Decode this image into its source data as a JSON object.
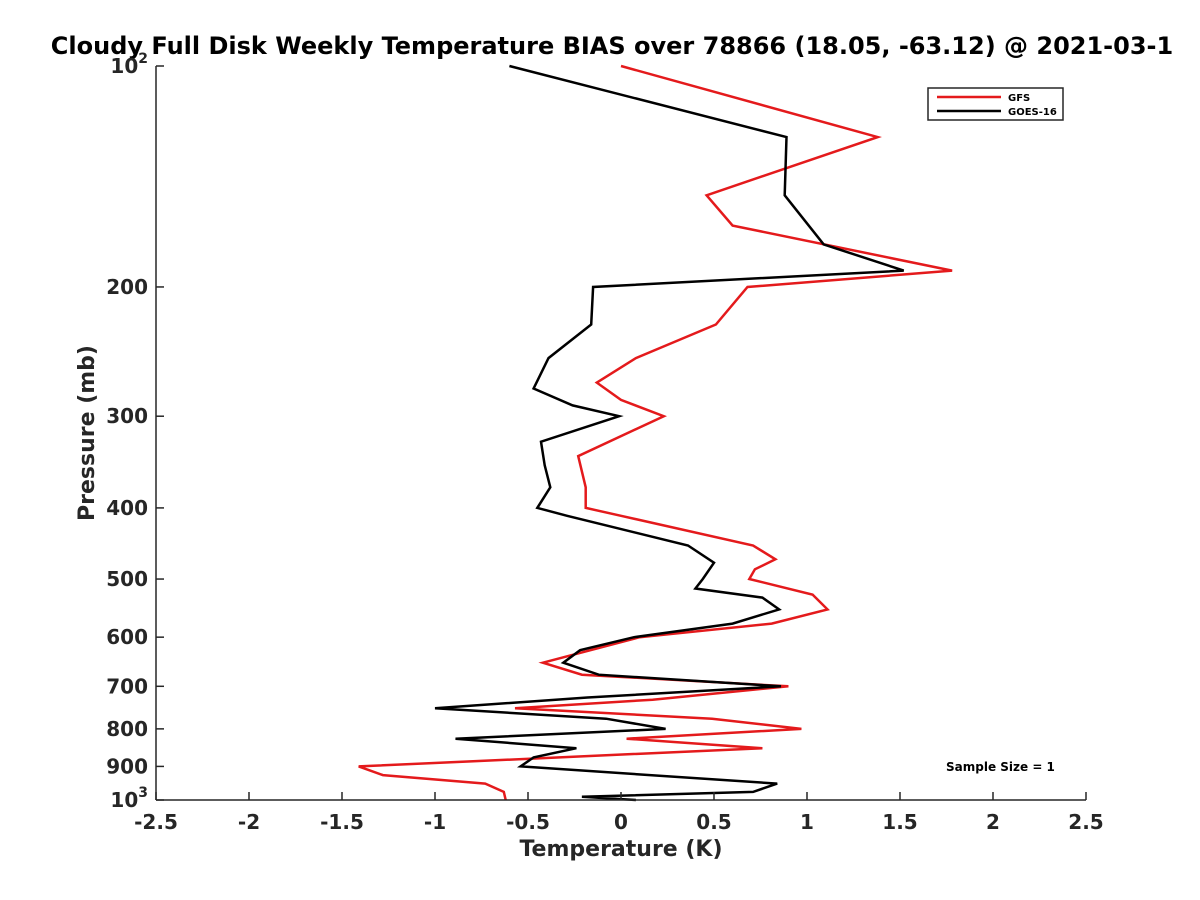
{
  "chart_data": {
    "type": "line",
    "title": "Cloudy Full Disk Weekly Temperature BIAS over 78866 (18.05, -63.12) @ 2021-03-1",
    "xlabel": "Temperature (K)",
    "ylabel": "Pressure (mb)",
    "xlim": [
      -2.5,
      2.5
    ],
    "ylim": [
      100,
      1000
    ],
    "yscale": "log",
    "y_reversed": true,
    "xticks": [
      -2.5,
      -2,
      -1.5,
      -1,
      -0.5,
      0,
      0.5,
      1,
      1.5,
      2,
      2.5
    ],
    "xtick_labels": [
      "-2.5",
      "-2",
      "-1.5",
      "-1",
      "-0.5",
      "0",
      "0.5",
      "1",
      "1.5",
      "2",
      "2.5"
    ],
    "yticks": [
      {
        "value": 100,
        "base": "10",
        "exp": "2"
      },
      {
        "value": 200,
        "label": "200"
      },
      {
        "value": 300,
        "label": "300"
      },
      {
        "value": 400,
        "label": "400"
      },
      {
        "value": 500,
        "label": "500"
      },
      {
        "value": 600,
        "label": "600"
      },
      {
        "value": 700,
        "label": "700"
      },
      {
        "value": 800,
        "label": "800"
      },
      {
        "value": 900,
        "label": "900"
      },
      {
        "value": 1000,
        "base": "10",
        "exp": "3"
      }
    ],
    "legend_position": "top-right",
    "annotation": "Sample Size = 1",
    "series": [
      {
        "name": "GFS",
        "color": "#e41a1c",
        "points": [
          [
            0.0,
            100
          ],
          [
            1.38,
            125
          ],
          [
            0.46,
            150
          ],
          [
            0.6,
            165
          ],
          [
            1.78,
            190
          ],
          [
            0.68,
            200
          ],
          [
            0.51,
            225
          ],
          [
            0.08,
            250
          ],
          [
            -0.13,
            270
          ],
          [
            0.0,
            285
          ],
          [
            0.23,
            300
          ],
          [
            -0.23,
            340
          ],
          [
            -0.19,
            375
          ],
          [
            -0.19,
            400
          ],
          [
            0.0,
            410
          ],
          [
            0.71,
            450
          ],
          [
            0.83,
            470
          ],
          [
            0.72,
            485
          ],
          [
            0.69,
            500
          ],
          [
            1.03,
            525
          ],
          [
            1.11,
            550
          ],
          [
            0.81,
            575
          ],
          [
            0.1,
            600
          ],
          [
            -0.42,
            650
          ],
          [
            -0.21,
            675
          ],
          [
            0.9,
            700
          ],
          [
            0.17,
            730
          ],
          [
            -0.57,
            750
          ],
          [
            0.49,
            775
          ],
          [
            0.97,
            800
          ],
          [
            0.03,
            825
          ],
          [
            0.76,
            850
          ],
          [
            -0.33,
            875
          ],
          [
            -1.41,
            900
          ],
          [
            -1.28,
            925
          ],
          [
            -0.73,
            950
          ],
          [
            -0.63,
            975
          ],
          [
            -0.62,
            1000
          ]
        ]
      },
      {
        "name": "GOES-16",
        "color": "#000000",
        "points": [
          [
            -0.6,
            100
          ],
          [
            0.89,
            125
          ],
          [
            0.88,
            150
          ],
          [
            1.09,
            175
          ],
          [
            1.52,
            190
          ],
          [
            -0.15,
            200
          ],
          [
            -0.16,
            225
          ],
          [
            -0.39,
            250
          ],
          [
            -0.47,
            275
          ],
          [
            -0.26,
            290
          ],
          [
            -0.01,
            300
          ],
          [
            -0.43,
            325
          ],
          [
            -0.41,
            350
          ],
          [
            -0.38,
            375
          ],
          [
            -0.45,
            400
          ],
          [
            -0.29,
            410
          ],
          [
            0.36,
            450
          ],
          [
            0.5,
            475
          ],
          [
            0.44,
            500
          ],
          [
            0.4,
            515
          ],
          [
            0.76,
            530
          ],
          [
            0.85,
            550
          ],
          [
            0.6,
            575
          ],
          [
            0.07,
            600
          ],
          [
            -0.22,
            625
          ],
          [
            -0.31,
            650
          ],
          [
            -0.12,
            675
          ],
          [
            0.86,
            700
          ],
          [
            -0.18,
            725
          ],
          [
            -1.0,
            750
          ],
          [
            -0.08,
            775
          ],
          [
            0.24,
            800
          ],
          [
            -0.89,
            825
          ],
          [
            -0.24,
            850
          ],
          [
            -0.47,
            875
          ],
          [
            -0.54,
            900
          ],
          [
            0.84,
            950
          ],
          [
            0.71,
            975
          ],
          [
            -0.21,
            990
          ],
          [
            0.08,
            1000
          ]
        ]
      }
    ]
  }
}
